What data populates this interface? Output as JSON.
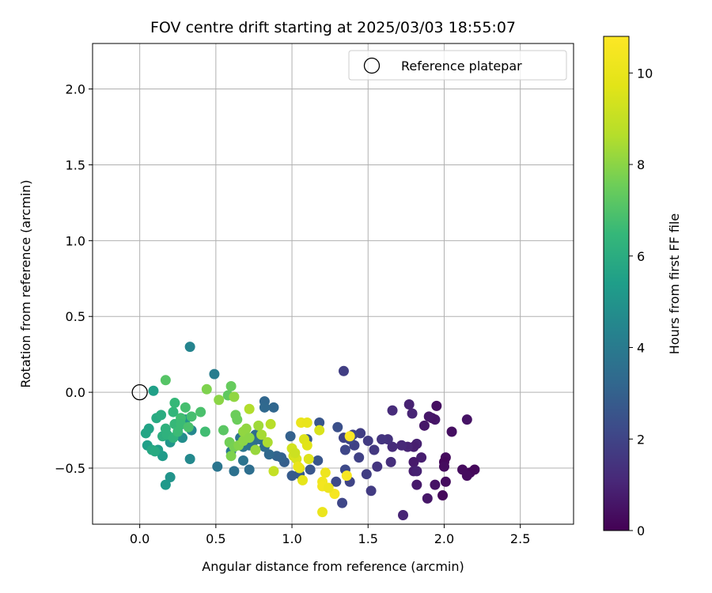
{
  "chart_data": {
    "type": "scatter",
    "title": "FOV centre drift starting at 2025/03/03 18:55:07",
    "xlabel": "Angular distance from reference (arcmin)",
    "ylabel": "Rotation from reference (arcmin)",
    "xlim": [
      -0.31,
      2.85
    ],
    "ylim": [
      -0.87,
      2.3
    ],
    "xticks": [
      0.0,
      0.5,
      1.0,
      1.5,
      2.0,
      2.5
    ],
    "xtick_labels": [
      "0.0",
      "0.5",
      "1.0",
      "1.5",
      "2.0",
      "2.5"
    ],
    "yticks": [
      -0.5,
      0.0,
      0.5,
      1.0,
      1.5,
      2.0
    ],
    "ytick_labels": [
      "−0.5",
      "0.0",
      "0.5",
      "1.0",
      "1.5",
      "2.0"
    ],
    "grid": true,
    "legend": {
      "location": "top-right",
      "entries": [
        "Reference platepar"
      ]
    },
    "reference_point": {
      "name": "Reference platepar",
      "x": 0.0,
      "y": 0.0,
      "marker": "open-circle"
    },
    "colorbar": {
      "label": "Hours from first FF file",
      "colormap": "viridis",
      "range": [
        0,
        10.8
      ],
      "ticks": [
        0,
        2,
        4,
        6,
        8,
        10
      ],
      "tick_labels": [
        "0",
        "2",
        "4",
        "6",
        "8",
        "10"
      ]
    },
    "points": [
      {
        "x": 2.2,
        "y": -0.51,
        "c": 0.2
      },
      {
        "x": 2.17,
        "y": -0.53,
        "c": 0.2
      },
      {
        "x": 2.15,
        "y": -0.55,
        "c": 0.3
      },
      {
        "x": 2.12,
        "y": -0.51,
        "c": 0.3
      },
      {
        "x": 2.15,
        "y": -0.18,
        "c": 0.5
      },
      {
        "x": 2.05,
        "y": -0.26,
        "c": 0.4
      },
      {
        "x": 2.01,
        "y": -0.43,
        "c": 0.3
      },
      {
        "x": 2.0,
        "y": -0.46,
        "c": 0.2
      },
      {
        "x": 2.0,
        "y": -0.49,
        "c": 0.3
      },
      {
        "x": 2.01,
        "y": -0.59,
        "c": 0.3
      },
      {
        "x": 1.99,
        "y": -0.68,
        "c": 0.2
      },
      {
        "x": 1.94,
        "y": -0.61,
        "c": 0.5
      },
      {
        "x": 1.95,
        "y": -0.09,
        "c": 0.4
      },
      {
        "x": 1.94,
        "y": -0.18,
        "c": 0.6
      },
      {
        "x": 1.92,
        "y": -0.17,
        "c": 0.5
      },
      {
        "x": 1.9,
        "y": -0.16,
        "c": 0.6
      },
      {
        "x": 1.87,
        "y": -0.22,
        "c": 0.6
      },
      {
        "x": 1.89,
        "y": -0.7,
        "c": 0.6
      },
      {
        "x": 1.82,
        "y": -0.34,
        "c": 0.9
      },
      {
        "x": 1.8,
        "y": -0.36,
        "c": 0.8
      },
      {
        "x": 1.85,
        "y": -0.43,
        "c": 0.8
      },
      {
        "x": 1.8,
        "y": -0.46,
        "c": 0.7
      },
      {
        "x": 1.8,
        "y": -0.52,
        "c": 0.8
      },
      {
        "x": 1.82,
        "y": -0.52,
        "c": 0.9
      },
      {
        "x": 1.82,
        "y": -0.61,
        "c": 0.7
      },
      {
        "x": 1.77,
        "y": -0.08,
        "c": 0.9
      },
      {
        "x": 1.79,
        "y": -0.14,
        "c": 1.0
      },
      {
        "x": 1.76,
        "y": -0.36,
        "c": 1.0
      },
      {
        "x": 1.72,
        "y": -0.35,
        "c": 1.1
      },
      {
        "x": 1.73,
        "y": -0.81,
        "c": 1.0
      },
      {
        "x": 1.66,
        "y": -0.12,
        "c": 1.2
      },
      {
        "x": 1.66,
        "y": -0.36,
        "c": 1.2
      },
      {
        "x": 1.65,
        "y": -0.46,
        "c": 1.3
      },
      {
        "x": 1.63,
        "y": -0.31,
        "c": 1.4
      },
      {
        "x": 1.59,
        "y": -0.31,
        "c": 1.5
      },
      {
        "x": 1.56,
        "y": -0.49,
        "c": 1.5
      },
      {
        "x": 1.54,
        "y": -0.38,
        "c": 1.6
      },
      {
        "x": 1.5,
        "y": -0.32,
        "c": 1.7
      },
      {
        "x": 1.49,
        "y": -0.54,
        "c": 1.8
      },
      {
        "x": 1.52,
        "y": -0.65,
        "c": 1.7
      },
      {
        "x": 1.45,
        "y": -0.27,
        "c": 1.8
      },
      {
        "x": 1.44,
        "y": -0.43,
        "c": 1.9
      },
      {
        "x": 1.41,
        "y": -0.35,
        "c": 1.9
      },
      {
        "x": 1.4,
        "y": -0.28,
        "c": 2.0
      },
      {
        "x": 1.38,
        "y": -0.31,
        "c": 2.1
      },
      {
        "x": 1.35,
        "y": -0.38,
        "c": 2.1
      },
      {
        "x": 1.34,
        "y": -0.3,
        "c": 2.0
      },
      {
        "x": 1.34,
        "y": 0.14,
        "c": 1.8
      },
      {
        "x": 1.35,
        "y": -0.51,
        "c": 2.2
      },
      {
        "x": 1.38,
        "y": -0.59,
        "c": 2.0
      },
      {
        "x": 1.33,
        "y": -0.73,
        "c": 2.1
      },
      {
        "x": 1.29,
        "y": -0.59,
        "c": 2.2
      },
      {
        "x": 1.3,
        "y": -0.23,
        "c": 2.4
      },
      {
        "x": 1.18,
        "y": -0.2,
        "c": 2.6
      },
      {
        "x": 1.17,
        "y": -0.45,
        "c": 2.6
      },
      {
        "x": 1.1,
        "y": -0.31,
        "c": 2.7
      },
      {
        "x": 1.12,
        "y": -0.51,
        "c": 2.6
      },
      {
        "x": 1.05,
        "y": -0.54,
        "c": 2.8
      },
      {
        "x": 1.0,
        "y": -0.55,
        "c": 2.8
      },
      {
        "x": 0.99,
        "y": -0.29,
        "c": 3.0
      },
      {
        "x": 0.95,
        "y": -0.46,
        "c": 2.9
      },
      {
        "x": 0.93,
        "y": -0.43,
        "c": 3.0
      },
      {
        "x": 0.9,
        "y": -0.42,
        "c": 3.1
      },
      {
        "x": 0.88,
        "y": -0.1,
        "c": 3.2
      },
      {
        "x": 0.82,
        "y": -0.06,
        "c": 3.2
      },
      {
        "x": 0.82,
        "y": -0.1,
        "c": 3.3
      },
      {
        "x": 0.85,
        "y": -0.41,
        "c": 3.3
      },
      {
        "x": 0.82,
        "y": -0.36,
        "c": 3.4
      },
      {
        "x": 0.79,
        "y": -0.31,
        "c": 3.5
      },
      {
        "x": 0.76,
        "y": -0.28,
        "c": 3.4
      },
      {
        "x": 0.75,
        "y": -0.32,
        "c": 3.5
      },
      {
        "x": 0.72,
        "y": -0.35,
        "c": 3.6
      },
      {
        "x": 0.72,
        "y": -0.51,
        "c": 3.5
      },
      {
        "x": 0.68,
        "y": -0.45,
        "c": 3.7
      },
      {
        "x": 0.68,
        "y": -0.36,
        "c": 3.8
      },
      {
        "x": 0.66,
        "y": -0.3,
        "c": 3.7
      },
      {
        "x": 0.62,
        "y": -0.52,
        "c": 3.6
      },
      {
        "x": 0.6,
        "y": -0.39,
        "c": 3.9
      },
      {
        "x": 0.51,
        "y": -0.49,
        "c": 3.8
      },
      {
        "x": 0.49,
        "y": 0.12,
        "c": 4.1
      },
      {
        "x": 0.33,
        "y": 0.3,
        "c": 4.4
      },
      {
        "x": 0.34,
        "y": -0.25,
        "c": 4.5
      },
      {
        "x": 0.33,
        "y": -0.44,
        "c": 4.6
      },
      {
        "x": 0.28,
        "y": -0.3,
        "c": 4.8
      },
      {
        "x": 0.26,
        "y": -0.22,
        "c": 4.9
      },
      {
        "x": 0.3,
        "y": -0.18,
        "c": 5.0
      },
      {
        "x": 0.2,
        "y": -0.56,
        "c": 5.0
      },
      {
        "x": 0.2,
        "y": -0.33,
        "c": 5.1
      },
      {
        "x": 0.17,
        "y": -0.61,
        "c": 5.2
      },
      {
        "x": 0.15,
        "y": -0.42,
        "c": 5.3
      },
      {
        "x": 0.12,
        "y": -0.38,
        "c": 5.4
      },
      {
        "x": 0.09,
        "y": 0.01,
        "c": 5.5
      },
      {
        "x": 0.05,
        "y": -0.35,
        "c": 5.5
      },
      {
        "x": 0.06,
        "y": -0.24,
        "c": 5.6
      },
      {
        "x": 0.04,
        "y": -0.27,
        "c": 5.7
      },
      {
        "x": 0.08,
        "y": -0.38,
        "c": 5.8
      },
      {
        "x": 0.1,
        "y": -0.39,
        "c": 5.9
      },
      {
        "x": 0.11,
        "y": -0.17,
        "c": 5.9
      },
      {
        "x": 0.14,
        "y": -0.15,
        "c": 6.0
      },
      {
        "x": 0.15,
        "y": -0.29,
        "c": 6.1
      },
      {
        "x": 0.17,
        "y": -0.24,
        "c": 6.2
      },
      {
        "x": 0.18,
        "y": -0.28,
        "c": 6.2
      },
      {
        "x": 0.22,
        "y": -0.3,
        "c": 6.3
      },
      {
        "x": 0.22,
        "y": -0.13,
        "c": 6.4
      },
      {
        "x": 0.23,
        "y": -0.07,
        "c": 6.5
      },
      {
        "x": 0.23,
        "y": -0.21,
        "c": 6.5
      },
      {
        "x": 0.25,
        "y": -0.26,
        "c": 6.6
      },
      {
        "x": 0.27,
        "y": -0.17,
        "c": 6.7
      },
      {
        "x": 0.27,
        "y": -0.21,
        "c": 6.6
      },
      {
        "x": 0.3,
        "y": -0.1,
        "c": 6.8
      },
      {
        "x": 0.32,
        "y": -0.23,
        "c": 6.9
      },
      {
        "x": 0.34,
        "y": -0.16,
        "c": 6.8
      },
      {
        "x": 0.4,
        "y": -0.13,
        "c": 6.9
      },
      {
        "x": 0.43,
        "y": -0.26,
        "c": 6.7
      },
      {
        "x": 0.17,
        "y": 0.08,
        "c": 7.1
      },
      {
        "x": 0.55,
        "y": -0.25,
        "c": 7.2
      },
      {
        "x": 0.58,
        "y": -0.02,
        "c": 7.3
      },
      {
        "x": 0.6,
        "y": 0.04,
        "c": 7.4
      },
      {
        "x": 0.63,
        "y": -0.15,
        "c": 7.5
      },
      {
        "x": 0.64,
        "y": -0.18,
        "c": 7.5
      },
      {
        "x": 0.59,
        "y": -0.33,
        "c": 7.6
      },
      {
        "x": 0.62,
        "y": -0.36,
        "c": 7.7
      },
      {
        "x": 0.6,
        "y": -0.42,
        "c": 7.8
      },
      {
        "x": 0.65,
        "y": -0.35,
        "c": 7.9
      },
      {
        "x": 0.68,
        "y": -0.32,
        "c": 8.0
      },
      {
        "x": 0.68,
        "y": -0.26,
        "c": 8.1
      },
      {
        "x": 0.7,
        "y": -0.24,
        "c": 8.1
      },
      {
        "x": 0.72,
        "y": -0.3,
        "c": 8.0
      },
      {
        "x": 0.76,
        "y": -0.38,
        "c": 8.2
      },
      {
        "x": 0.78,
        "y": -0.22,
        "c": 8.3
      },
      {
        "x": 0.8,
        "y": -0.28,
        "c": 8.4
      },
      {
        "x": 0.84,
        "y": -0.33,
        "c": 8.5
      },
      {
        "x": 0.62,
        "y": -0.03,
        "c": 8.1
      },
      {
        "x": 0.44,
        "y": 0.02,
        "c": 7.8
      },
      {
        "x": 0.52,
        "y": -0.05,
        "c": 8.0
      },
      {
        "x": 0.72,
        "y": -0.11,
        "c": 8.6
      },
      {
        "x": 0.86,
        "y": -0.21,
        "c": 8.7
      },
      {
        "x": 0.88,
        "y": -0.52,
        "c": 9.0
      },
      {
        "x": 1.0,
        "y": -0.37,
        "c": 9.3
      },
      {
        "x": 1.01,
        "y": -0.42,
        "c": 9.4
      },
      {
        "x": 1.03,
        "y": -0.44,
        "c": 9.5
      },
      {
        "x": 1.02,
        "y": -0.4,
        "c": 9.2
      },
      {
        "x": 1.08,
        "y": -0.31,
        "c": 9.6
      },
      {
        "x": 1.1,
        "y": -0.35,
        "c": 9.7
      },
      {
        "x": 1.11,
        "y": -0.44,
        "c": 9.6
      },
      {
        "x": 1.05,
        "y": -0.5,
        "c": 9.8
      },
      {
        "x": 1.04,
        "y": -0.49,
        "c": 10.0
      },
      {
        "x": 1.07,
        "y": -0.58,
        "c": 9.9
      },
      {
        "x": 1.06,
        "y": -0.2,
        "c": 10.1
      },
      {
        "x": 1.1,
        "y": -0.2,
        "c": 10.0
      },
      {
        "x": 1.18,
        "y": -0.25,
        "c": 9.5
      },
      {
        "x": 1.22,
        "y": -0.53,
        "c": 10.2
      },
      {
        "x": 1.2,
        "y": -0.59,
        "c": 10.3
      },
      {
        "x": 1.2,
        "y": -0.62,
        "c": 10.4
      },
      {
        "x": 1.2,
        "y": -0.79,
        "c": 10.1
      },
      {
        "x": 1.28,
        "y": -0.67,
        "c": 10.5
      },
      {
        "x": 1.36,
        "y": -0.55,
        "c": 10.6
      },
      {
        "x": 1.38,
        "y": -0.29,
        "c": 10.7
      },
      {
        "x": 1.24,
        "y": -0.63,
        "c": 10.2
      }
    ]
  }
}
